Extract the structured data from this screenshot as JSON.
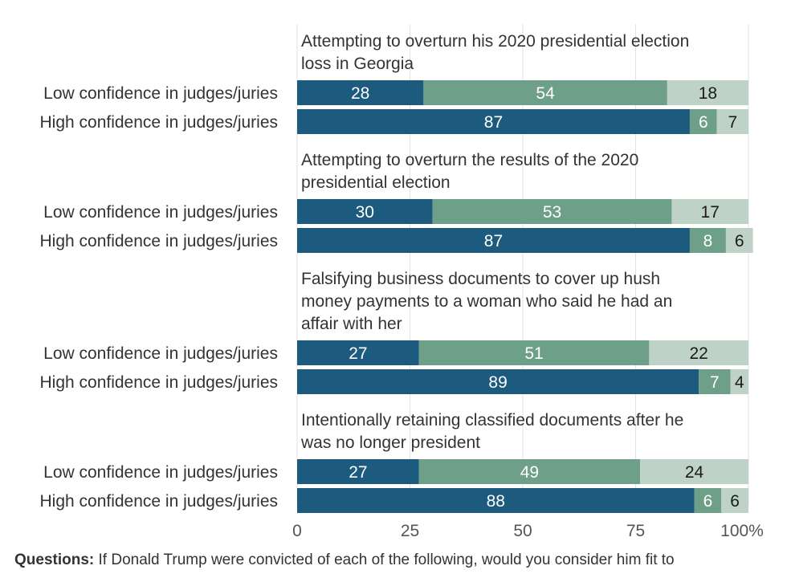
{
  "chart_data": {
    "type": "bar",
    "orientation": "horizontal",
    "stacked": true,
    "xlim": [
      0,
      100
    ],
    "x_ticks": [
      "0",
      "25",
      "50",
      "75",
      "100%"
    ],
    "grid": true,
    "colors": {
      "segment1": "#1c5a7e",
      "segment2": "#6e9f88",
      "segment3": "#bfd2c8"
    },
    "groups": [
      {
        "title": "Attempting to overturn his 2020 presidential election loss in Georgia",
        "title_lines": [
          "Attempting to overturn his 2020 presidential election",
          "loss in Georgia"
        ],
        "rows": [
          {
            "label": "Low confidence in judges/juries",
            "values": [
              28,
              54,
              18
            ]
          },
          {
            "label": "High confidence in judges/juries",
            "values": [
              87,
              6,
              7
            ]
          }
        ]
      },
      {
        "title": "Attempting to overturn the results of the 2020 presidential election",
        "title_lines": [
          "Attempting to overturn the results of the 2020",
          "presidential election"
        ],
        "rows": [
          {
            "label": "Low confidence in judges/juries",
            "values": [
              30,
              53,
              17
            ]
          },
          {
            "label": "High confidence in judges/juries",
            "values": [
              87,
              8,
              6
            ]
          }
        ]
      },
      {
        "title": "Falsifying business documents to cover up hush money payments to a woman who said he had an affair with her",
        "title_lines": [
          "Falsifying business documents to cover up hush",
          "money payments to a woman who said he had an",
          "affair with her"
        ],
        "rows": [
          {
            "label": "Low confidence in judges/juries",
            "values": [
              27,
              51,
              22
            ]
          },
          {
            "label": "High confidence in judges/juries",
            "values": [
              89,
              7,
              4
            ]
          }
        ]
      },
      {
        "title": "Intentionally retaining classified documents after he was no longer president",
        "title_lines": [
          "Intentionally retaining classified documents after he",
          "was no longer president"
        ],
        "rows": [
          {
            "label": "Low confidence in judges/juries",
            "values": [
              27,
              49,
              24
            ]
          },
          {
            "label": "High confidence in judges/juries",
            "values": [
              88,
              6,
              6
            ]
          }
        ]
      }
    ]
  },
  "footer": {
    "questions_label": "Questions:",
    "questions_text": "If Donald Trump were convicted of each of the following, would you consider him fit to"
  }
}
